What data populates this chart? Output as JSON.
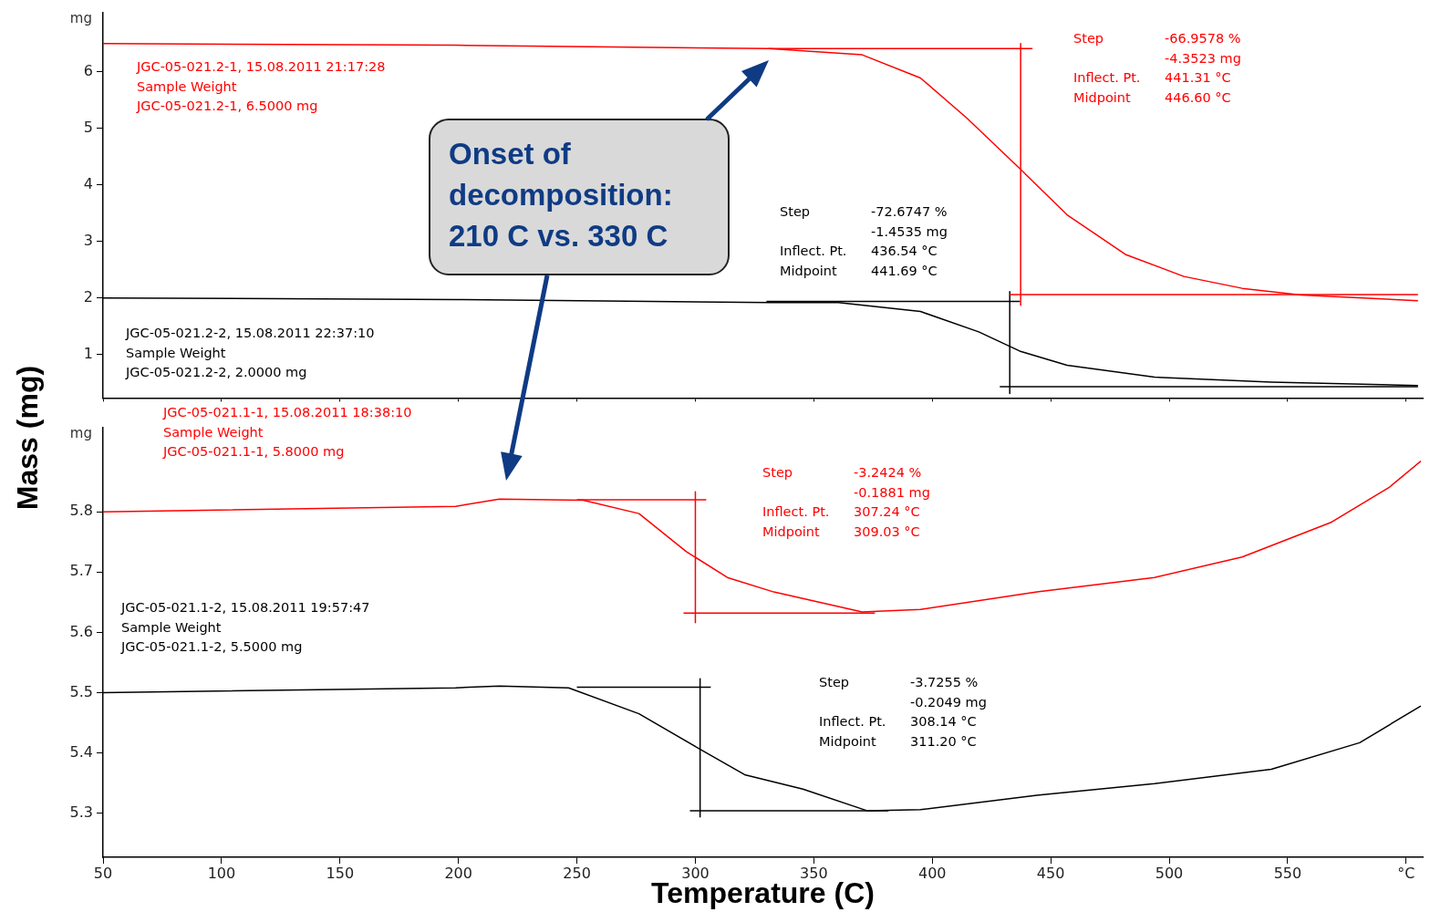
{
  "chart_data": [
    {
      "type": "line",
      "ylabel": "mg",
      "xlim": [
        50,
        607
      ],
      "ylim": [
        0.23,
        7.05
      ],
      "xticks": [
        50,
        100,
        150,
        200,
        250,
        300,
        350,
        400,
        450,
        500,
        550,
        600
      ],
      "yticks": [
        1,
        2,
        3,
        4,
        5,
        6
      ],
      "tick_labels": "y",
      "series": [
        {
          "color": "#ff0000",
          "x": [
            50,
            198.8,
            330.8,
            370.4,
            395,
            414.6,
            436.9,
            456.9,
            481.5,
            506.2,
            530.8,
            555.8,
            605
          ],
          "values": [
            6.5,
            6.47,
            6.41,
            6.3,
            5.89,
            5.18,
            4.29,
            3.47,
            2.77,
            2.38,
            2.17,
            2.05,
            1.95
          ]
        },
        {
          "color": "#000000",
          "x": [
            50,
            198.8,
            331.5,
            360.4,
            395,
            419.6,
            436.9,
            456.9,
            493.8,
            543.1,
            605
          ],
          "values": [
            2.0,
            1.97,
            1.92,
            1.92,
            1.76,
            1.4,
            1.06,
            0.81,
            0.6,
            0.51,
            0.45
          ]
        },
        {
          "color": "#ff0000",
          "x": [
            330.8,
            442.3
          ],
          "values": [
            6.41,
            6.41
          ]
        },
        {
          "color": "#ff0000",
          "x": [
            437.3,
            437.3
          ],
          "values": [
            6.5,
            1.87
          ]
        },
        {
          "color": "#ff0000",
          "x": [
            432.7,
            605
          ],
          "values": [
            2.06,
            2.06
          ]
        },
        {
          "color": "#000000",
          "x": [
            330,
            437
          ],
          "values": [
            1.94,
            1.94
          ]
        },
        {
          "color": "#000000",
          "x": [
            432.7,
            432.7
          ],
          "values": [
            2.11,
            0.31
          ]
        },
        {
          "color": "#000000",
          "x": [
            428.5,
            605
          ],
          "values": [
            0.43,
            0.43
          ]
        }
      ],
      "annotations": [
        "JGC-05-021.2-1, 15.08.2011 21:17:28\nSample Weight\nJGC-05-021.2-1, 6.5000 mg",
        "JGC-05-021.2-2, 15.08.2011 22:37:10\nSample Weight\nJGC-05-021.2-2, 2.0000 mg",
        "Step\t-66.9578 %\n\t-4.3523 mg\nInflect. Pt.\t441.31 °C\nMidpoint\t446.60 °C",
        "Step\t-72.6747 %\n\t-1.4535 mg\nInflect. Pt.\t436.54 °C\nMidpoint\t441.69 °C",
        "Onset of\ndecomposition:\n210 C vs. 330 C"
      ]
    },
    {
      "type": "line",
      "ylabel": "mg",
      "xlabel": "Temperature (C)",
      "xlim": [
        50,
        607
      ],
      "ylim": [
        5.227,
        5.94
      ],
      "xticks": [
        50,
        100,
        150,
        200,
        250,
        300,
        350,
        400,
        450,
        500,
        550,
        {
          "value": 600,
          "label": "°C"
        }
      ],
      "yticks": [
        5.3,
        5.4,
        5.5,
        5.6,
        5.7,
        5.8
      ],
      "series": [
        {
          "color": "#ff0000",
          "x": [
            50,
            198.8,
            217.3,
            252.7,
            276.2,
            296.2,
            313.5,
            333.1,
            370.4,
            395,
            444.2,
            493.8,
            530.8,
            568.1,
            592.7,
            606.2
          ],
          "values": [
            5.8,
            5.809,
            5.821,
            5.819,
            5.797,
            5.734,
            5.691,
            5.667,
            5.634,
            5.638,
            5.667,
            5.691,
            5.725,
            5.782,
            5.84,
            5.884
          ]
        },
        {
          "color": "#000000",
          "x": [
            50,
            198.8,
            217.3,
            246.5,
            276.2,
            301.2,
            320.8,
            345.4,
            372.7,
            395,
            444.2,
            493.8,
            543.1,
            580.4,
            606.2
          ],
          "values": [
            5.5,
            5.508,
            5.511,
            5.508,
            5.465,
            5.408,
            5.364,
            5.34,
            5.304,
            5.306,
            5.33,
            5.349,
            5.373,
            5.417,
            5.478
          ]
        },
        {
          "color": "#ff0000",
          "x": [
            250,
            304.6
          ],
          "values": [
            5.82,
            5.82
          ]
        },
        {
          "color": "#ff0000",
          "x": [
            300,
            300
          ],
          "values": [
            5.833,
            5.616
          ]
        },
        {
          "color": "#ff0000",
          "x": [
            295,
            375.8
          ],
          "values": [
            5.632,
            5.632
          ]
        },
        {
          "color": "#000000",
          "x": [
            250,
            306.5
          ],
          "values": [
            5.509,
            5.509
          ]
        },
        {
          "color": "#000000",
          "x": [
            302,
            302
          ],
          "values": [
            5.523,
            5.294
          ]
        },
        {
          "color": "#000000",
          "x": [
            297.7,
            381.5
          ],
          "values": [
            5.304,
            5.304
          ]
        }
      ],
      "annotations": [
        "JGC-05-021.1-1, 15.08.2011 18:38:10\nSample Weight\nJGC-05-021.1-1, 5.8000 mg",
        "JGC-05-021.1-2, 15.08.2011 19:57:47\nSample Weight\nJGC-05-021.1-2, 5.5000 mg",
        "Step\t-3.2424 %\n\t-0.1881 mg\nInflect. Pt.\t307.24 °C\nMidpoint\t309.03 °C",
        "Step\t-3.7255 %\n\t-0.2049 mg\nInflect. Pt.\t308.14 °C\nMidpoint\t311.20 °C",
        "Mass (mg)"
      ]
    }
  ]
}
